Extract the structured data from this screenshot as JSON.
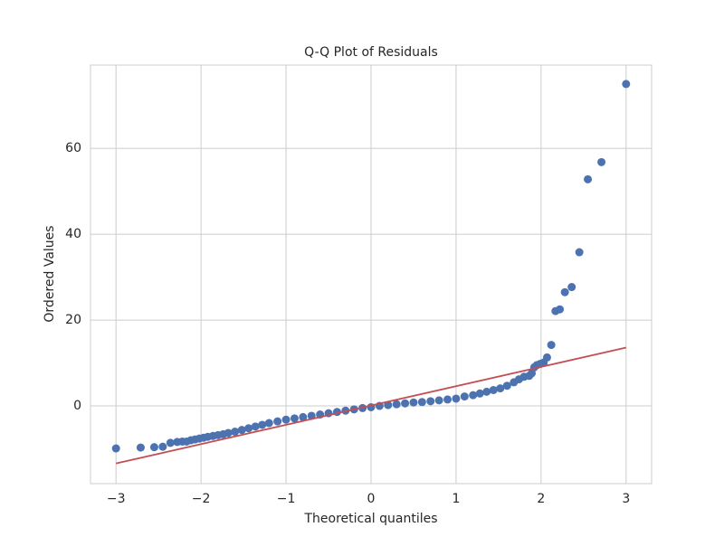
{
  "chart_data": {
    "type": "scatter",
    "title": "Q-Q Plot of Residuals",
    "xlabel": "Theoretical quantiles",
    "ylabel": "Ordered Values",
    "x": [
      -3.0,
      -2.71,
      -2.55,
      -2.45,
      -2.36,
      -2.28,
      -2.22,
      -2.17,
      -2.12,
      -2.07,
      -2.02,
      -1.97,
      -1.92,
      -1.86,
      -1.8,
      -1.74,
      -1.68,
      -1.6,
      -1.52,
      -1.44,
      -1.36,
      -1.28,
      -1.2,
      -1.1,
      -1.0,
      -0.9,
      -0.8,
      -0.7,
      -0.6,
      -0.5,
      -0.4,
      -0.3,
      -0.2,
      -0.1,
      0,
      0.1,
      0.2,
      0.3,
      0.4,
      0.5,
      0.6,
      0.7,
      0.8,
      0.9,
      1.0,
      1.1,
      1.2,
      1.28,
      1.36,
      1.44,
      1.52,
      1.6,
      1.68,
      1.74,
      1.8,
      1.86,
      1.89,
      1.92,
      1.95,
      1.99,
      2.03,
      2.07,
      2.12,
      2.17,
      2.22,
      2.28,
      2.36,
      2.45,
      2.55,
      2.71,
      3.0
    ],
    "series": [
      {
        "color": "#4c72b0",
        "values": [
          -9.9,
          -9.7,
          -9.6,
          -9.5,
          -8.6,
          -8.4,
          -8.3,
          -8.3,
          -8.0,
          -7.8,
          -7.6,
          -7.4,
          -7.2,
          -7.0,
          -6.8,
          -6.6,
          -6.3,
          -6.0,
          -5.6,
          -5.2,
          -4.8,
          -4.4,
          -4.0,
          -3.6,
          -3.2,
          -2.9,
          -2.6,
          -2.3,
          -2.0,
          -1.7,
          -1.4,
          -1.1,
          -0.8,
          -0.5,
          -0.3,
          0.0,
          0.2,
          0.4,
          0.6,
          0.8,
          0.9,
          1.1,
          1.3,
          1.5,
          1.7,
          2.2,
          2.5,
          2.9,
          3.3,
          3.7,
          4.1,
          4.7,
          5.5,
          6.2,
          6.8,
          7.0,
          7.6,
          9.0,
          9.5,
          9.8,
          10.1,
          11.3,
          14.2,
          22.1,
          22.5,
          26.5,
          27.7,
          35.8,
          52.8,
          56.8,
          75.0
        ]
      }
    ],
    "fit_line": {
      "color": "#c44e52",
      "x": [
        -3,
        3
      ],
      "values": [
        -13.4,
        13.6
      ]
    },
    "xlim": [
      -3.3,
      3.3
    ],
    "ylim": [
      -18.1,
      79.4
    ],
    "xticks": [
      {
        "value": -3,
        "label": "−3"
      },
      {
        "value": -2,
        "label": "−2"
      },
      {
        "value": -1,
        "label": "−1"
      },
      0,
      1,
      2,
      3
    ],
    "yticks": [
      0,
      20,
      40,
      60
    ],
    "grid": true
  }
}
